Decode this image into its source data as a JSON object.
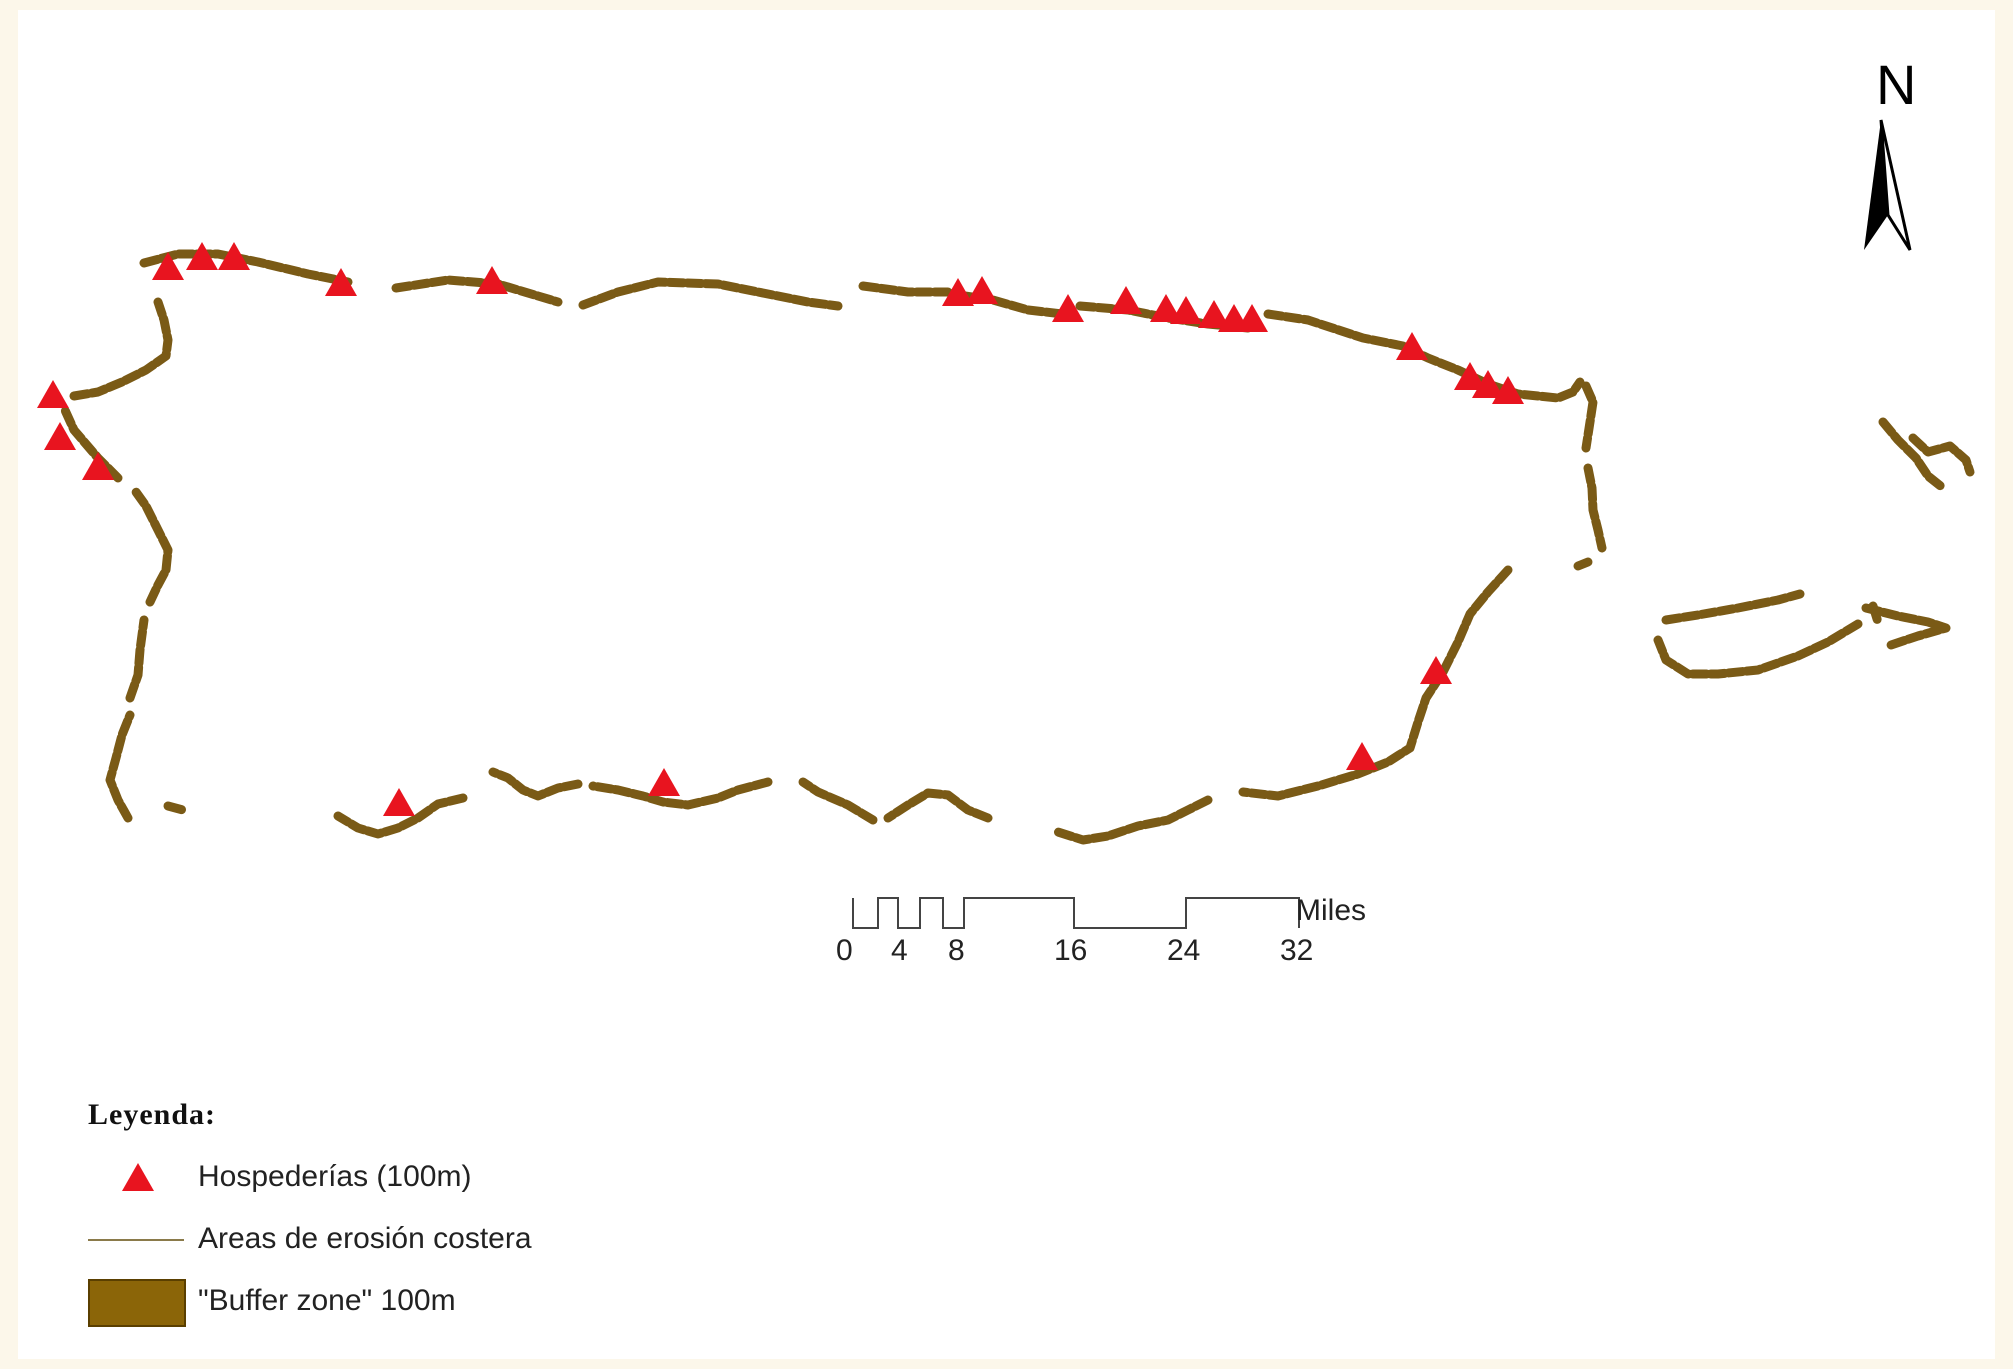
{
  "map": {
    "north_label": "N",
    "colors": {
      "buffer": "#7a5a16",
      "hotel": "#e8141f",
      "scale": "#333333"
    }
  },
  "scale_bar": {
    "unit": "Miles",
    "ticks": [
      "0",
      "4",
      "8",
      "16",
      "24",
      "32"
    ]
  },
  "legend": {
    "title": "Leyenda:",
    "items": [
      {
        "label": "Hospederías (100m)",
        "symbol": "red-triangle"
      },
      {
        "label": "Areas de erosión costera",
        "symbol": "thin-line"
      },
      {
        "label": "\"Buffer zone\" 100m",
        "symbol": "brown-box"
      }
    ]
  }
}
